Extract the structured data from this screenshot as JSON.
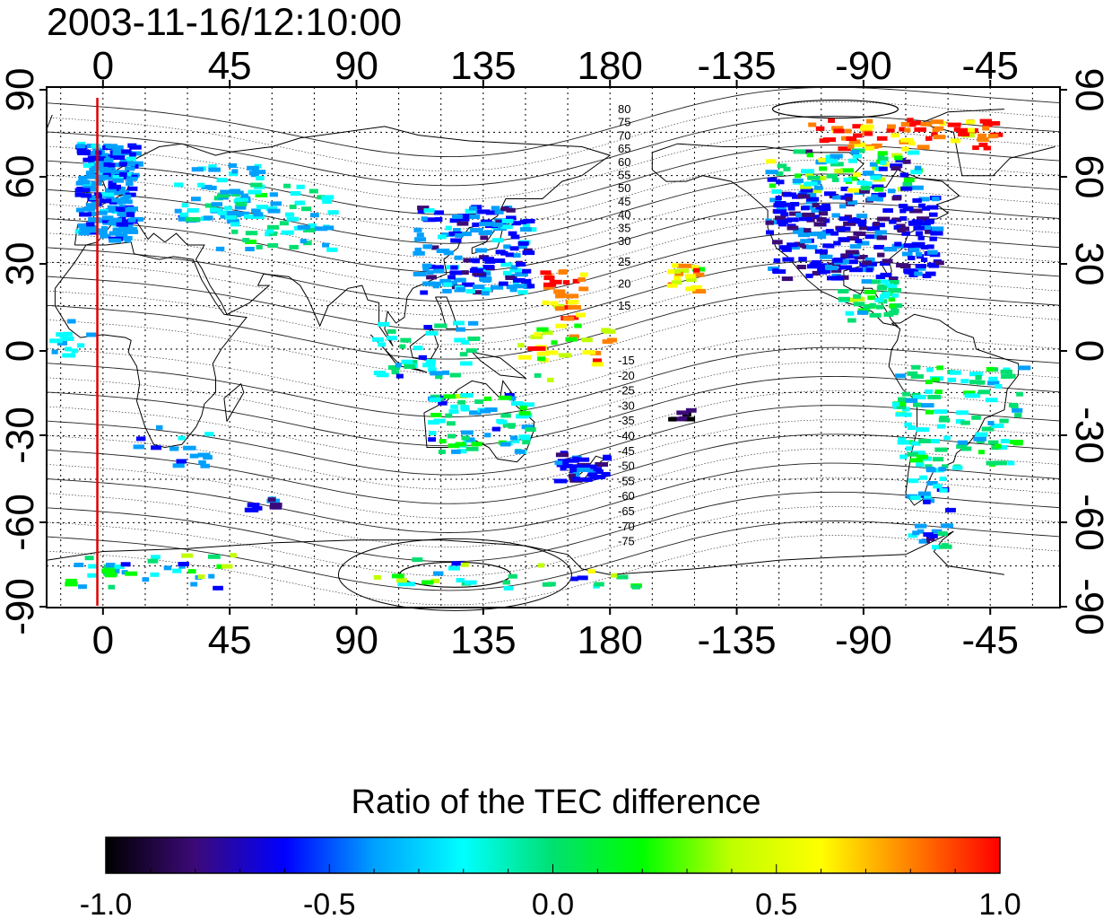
{
  "title": "2003-11-16/12:10:00",
  "map": {
    "x_ticks": [
      "0",
      "45",
      "90",
      "135",
      "180",
      "-135",
      "-90",
      "-45"
    ],
    "y_ticks_left": [
      "90",
      "60",
      "30",
      "0",
      "-30",
      "-60",
      "-90"
    ],
    "y_ticks_right": [
      "90",
      "60",
      "30",
      "0",
      "-30",
      "-60",
      "-90"
    ],
    "contour_labels_north": [
      "80",
      "75",
      "70",
      "65",
      "60",
      "55",
      "50",
      "45",
      "40",
      "35",
      "30",
      "25",
      "20",
      "15"
    ],
    "contour_labels_south": [
      "-15",
      "-20",
      "-25",
      "-30",
      "-35",
      "-40",
      "-45",
      "-50",
      "-55",
      "-60",
      "-65",
      "-70",
      "-75"
    ],
    "red_line_longitude": -2
  },
  "colorbar": {
    "title": "Ratio of the TEC difference",
    "tick_labels": [
      "-1.0",
      "-0.5",
      "0.0",
      "0.5",
      "1.0"
    ],
    "range": [
      -1.0,
      1.0
    ],
    "colormap": [
      "#000000",
      "#3c0a78",
      "#0000ff",
      "#00a0ff",
      "#00ffff",
      "#00e070",
      "#00ff00",
      "#c0ff00",
      "#ffff00",
      "#ff8000",
      "#ff0000"
    ]
  }
}
